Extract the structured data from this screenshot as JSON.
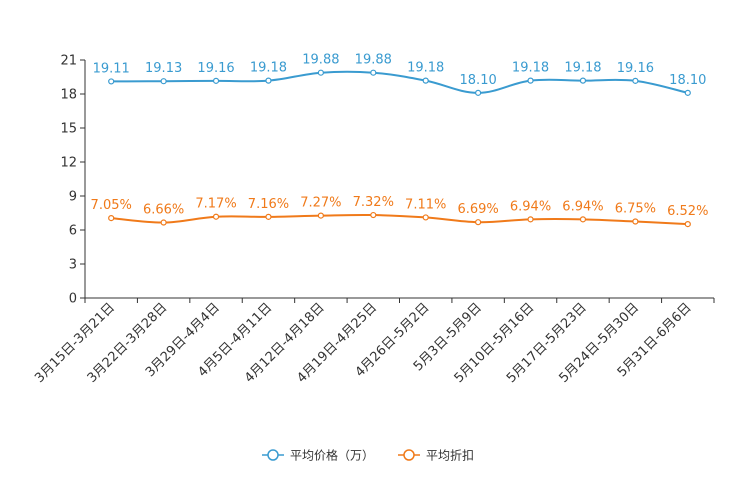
{
  "chart_data": {
    "type": "line",
    "categories": [
      "3月15日-3月21日",
      "3月22日-3月28日",
      "3月29日-4月4日",
      "4月5日-4月11日",
      "4月12日-4月18日",
      "4月19日-4月25日",
      "4月26日-5月2日",
      "5月3日-5月9日",
      "5月10日-5月16日",
      "5月17日-5月23日",
      "5月24日-5月30日",
      "5月31日-6月6日"
    ],
    "ylim": [
      0,
      21
    ],
    "yticks": [
      "0",
      "3",
      "6",
      "9",
      "12",
      "15",
      "18",
      "21"
    ],
    "series": [
      {
        "name": "平均价格（万）",
        "color": "#3a9bd0",
        "values": [
          19.11,
          19.13,
          19.16,
          19.18,
          19.88,
          19.88,
          19.18,
          18.1,
          19.18,
          19.18,
          19.16,
          18.1
        ],
        "labels": [
          "19.11",
          "19.13",
          "19.16",
          "19.18",
          "19.88",
          "19.88",
          "19.18",
          "18.10",
          "19.18",
          "19.18",
          "19.16",
          "18.10"
        ]
      },
      {
        "name": "平均折扣",
        "color": "#f07a1a",
        "values": [
          7.05,
          6.66,
          7.17,
          7.16,
          7.27,
          7.32,
          7.11,
          6.69,
          6.94,
          6.94,
          6.75,
          6.52
        ],
        "labels": [
          "7.05%",
          "6.66%",
          "7.17%",
          "7.16%",
          "7.27%",
          "7.32%",
          "7.11%",
          "6.69%",
          "6.94%",
          "6.94%",
          "6.75%",
          "6.52%"
        ]
      }
    ],
    "legend": [
      "平均价格（万）",
      "平均折扣"
    ]
  }
}
